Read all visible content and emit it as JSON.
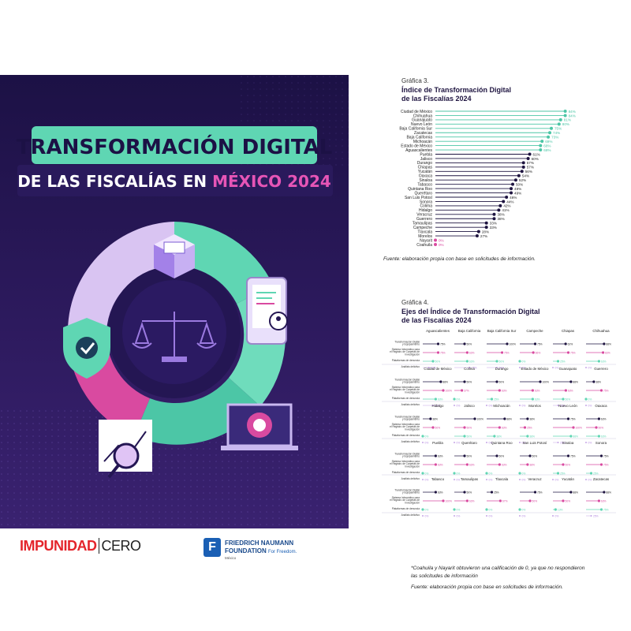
{
  "cover": {
    "title_line1": "TRANSFORMACIÓN DIGITAL",
    "title_line2_a": "DE LAS FISCALÍAS EN ",
    "title_line2_b": "MÉXICO 2024",
    "colors": {
      "bg": "#24164f",
      "teal": "#5fd6b3",
      "pink": "#d94aa0",
      "lilac": "#d9c4f2",
      "white": "#ffffff"
    },
    "icons": [
      "justice-scale-icon",
      "shield-check-icon",
      "phone-profile-icon",
      "laptop-gear-icon",
      "chart-magnifier-icon",
      "folder-cube-icon"
    ]
  },
  "logos": {
    "impunidad_a": "IMPUNIDAD",
    "impunidad_b": "CERO",
    "fn_mark": "F",
    "fn_line1": "FRIEDRICH NAUMANN",
    "fn_line2": "FOUNDATION",
    "fn_line2b": "For Freedom.",
    "fn_line3": "México"
  },
  "chart_data": [
    {
      "type": "scatter",
      "kicker": "Gráfica 3.",
      "title": "Índice de Transformación Digital de las Fiscalías 2024",
      "title_line1": "Índice de Transformación Digital",
      "title_line2": "de las Fiscalías 2024",
      "xlim": [
        0,
        100
      ],
      "categories": [
        "Ciudad de México",
        "Chihuahua",
        "Guanajuato",
        "Nuevo León",
        "Baja California Sur",
        "Zacatecas",
        "Baja California",
        "Michoacán",
        "Estado de México",
        "Aguascalientes",
        "Puebla",
        "Jalisco",
        "Durango",
        "Chiapas",
        "Yucatán",
        "Oaxaca",
        "Sinaloa",
        "Tabasco",
        "Quintana Roo",
        "Querétaro",
        "San Luis Potosí",
        "Sonora",
        "Colima",
        "Hidalgo",
        "Veracruz",
        "Guerrero",
        "Tamaulipas",
        "Campeche",
        "Tlaxcala",
        "Morelos",
        "Nayarit",
        "Coahuila"
      ],
      "values": [
        84,
        84,
        81,
        80,
        75,
        74,
        73,
        69,
        68,
        68,
        61,
        60,
        57,
        57,
        56,
        54,
        52,
        50,
        49,
        49,
        46,
        44,
        42,
        41,
        38,
        38,
        33,
        33,
        28,
        27,
        0,
        0
      ],
      "labels": [
        "84%",
        "84%",
        "81%",
        "80%",
        "75%",
        "74%",
        "73%",
        "69%",
        "68%",
        "68%",
        "61%",
        "60%",
        "57%",
        "57%",
        "56%",
        "54%",
        "52%",
        "50%",
        "49%",
        "49%",
        "46%",
        "44%",
        "42%",
        "41%",
        "38%",
        "38%",
        "33%",
        "33%",
        "28%",
        "27%",
        "0%",
        "0%"
      ],
      "source": "Fuente: elaboración propia con base en solicitudes de información."
    },
    {
      "type": "scatter",
      "kicker": "Gráfica 4.",
      "title": "Ejes del Índice de Transformación Digital de las Fiscalías 2024",
      "title_line1": "Ejes del Índice de Transformación Digital",
      "title_line2": "de las Fiscalías 2024",
      "axes": [
        "Transformación Digital y Equipamiento",
        "Sistema Informático para el Registro de Carpetas de Investigación",
        "Plataformas de denuncia",
        "Análisis delictivo"
      ],
      "axes_lines": [
        [
          "Transformación Digital",
          "y Equipamiento"
        ],
        [
          "Sistema Informático para",
          "el Registro de Carpetas de",
          "Investigación"
        ],
        [
          "Plataformas de denuncia"
        ],
        [
          "Análisis delictivo"
        ]
      ],
      "series_colors": [
        "#1e1440",
        "#d94aa0",
        "#5fd6b3",
        "#b58be0"
      ],
      "xlim": [
        0,
        100
      ],
      "states": [
        {
          "name": "Aguascalientes",
          "values": [
            75,
            75,
            50,
            30
          ]
        },
        {
          "name": "Baja California",
          "values": [
            50,
            63,
            63,
            75
          ]
        },
        {
          "name": "Baja California Sur",
          "values": [
            100,
            75,
            50,
            50
          ]
        },
        {
          "name": "Campeche",
          "values": [
            75,
            66,
            0,
            0
          ]
        },
        {
          "name": "Chiapas",
          "values": [
            62,
            75,
            25,
            0
          ]
        },
        {
          "name": "Chihuahua",
          "values": [
            88,
            83,
            63,
            0
          ]
        },
        {
          "name": "Ciudad de México",
          "values": [
            88,
            100,
            63,
            50
          ]
        },
        {
          "name": "Colima",
          "values": [
            50,
            37,
            0,
            0
          ]
        },
        {
          "name": "Durango",
          "values": [
            50,
            63,
            25,
            0
          ]
        },
        {
          "name": "Estado de México",
          "values": [
            100,
            63,
            63,
            0
          ]
        },
        {
          "name": "Guanajuato",
          "values": [
            88,
            63,
            50,
            25
          ]
        },
        {
          "name": "Guerrero",
          "values": [
            38,
            75,
            0,
            0
          ]
        },
        {
          "name": "Hidalgo",
          "values": [
            38,
            50,
            0,
            0
          ]
        },
        {
          "name": "Jalisco",
          "values": [
            100,
            50,
            50,
            0
          ]
        },
        {
          "name": "Michoacán",
          "values": [
            88,
            63,
            38,
            0
          ]
        },
        {
          "name": "Morelos",
          "values": [
            38,
            25,
            38,
            0
          ]
        },
        {
          "name": "Nuevo León",
          "values": [
            75,
            100,
            88,
            25
          ]
        },
        {
          "name": "Oaxaca",
          "values": [
            63,
            50,
            63,
            0
          ]
        },
        {
          "name": "Puebla",
          "values": [
            63,
            63,
            0,
            0
          ]
        },
        {
          "name": "Querétaro",
          "values": [
            50,
            63,
            0,
            0
          ]
        },
        {
          "name": "Quintana Roo",
          "values": [
            50,
            63,
            0,
            0
          ]
        },
        {
          "name": "San Luis Potosí",
          "values": [
            50,
            38,
            0,
            0
          ]
        },
        {
          "name": "Sinaloa",
          "values": [
            75,
            50,
            25,
            0
          ]
        },
        {
          "name": "Sonora",
          "values": [
            75,
            75,
            25,
            0
          ]
        },
        {
          "name": "Tabasco",
          "values": [
            63,
            100,
            0,
            0
          ]
        },
        {
          "name": "Tamaulipas",
          "values": [
            50,
            63,
            0,
            0
          ]
        },
        {
          "name": "Tlaxcala",
          "values": [
            25,
            67,
            0,
            0
          ]
        },
        {
          "name": "Veracruz",
          "values": [
            75,
            50,
            0,
            0
          ]
        },
        {
          "name": "Yucatán",
          "values": [
            88,
            50,
            13,
            0
          ]
        },
        {
          "name": "Zacatecas",
          "values": [
            88,
            63,
            75,
            25
          ]
        }
      ],
      "note_line1": "*Coahuila y Nayarit obtuvieron una calificación de 0, ya que no respondieron",
      "note_line2": "las solicitudes de información",
      "source": "Fuente: elaboración propia con base en solicitudes de información."
    }
  ]
}
